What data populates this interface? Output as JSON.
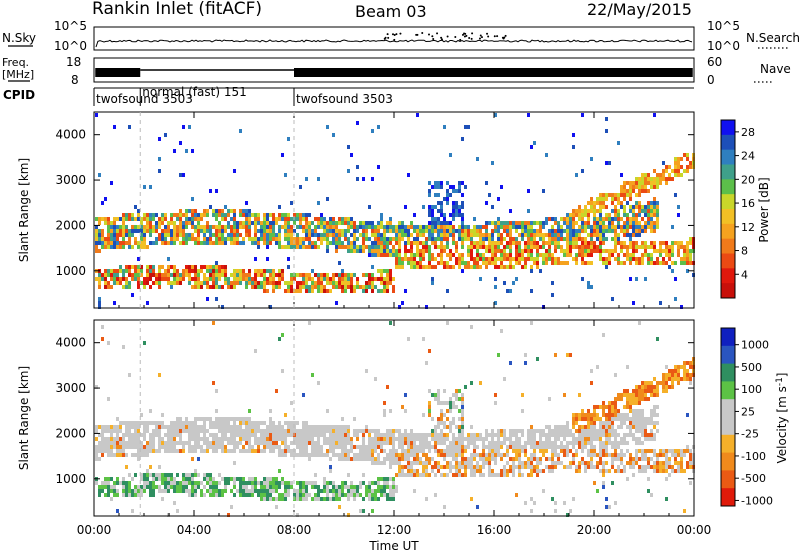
{
  "header": {
    "site": "Rankin Inlet (fitACF)",
    "beam": "Beam 03",
    "date": "22/May/2015"
  },
  "summary": {
    "nsky_label": "N.Sky",
    "nsky_ticks": [
      "10^5",
      "10^0"
    ],
    "nsearch_label": "N.Search",
    "freq_label_1": "Freq.",
    "freq_label_2": "[MHz]",
    "freq_ticks": [
      "18",
      "8"
    ],
    "nave_label": "Nave",
    "nave_ticks": [
      "60",
      "0"
    ],
    "cpid_label": "CPID",
    "modes": [
      {
        "name": "twofsound 3503",
        "start_h": 0.0
      },
      {
        "name": "normal (fast) 151",
        "start_h": 1.85
      },
      {
        "name": "twofsound 3503",
        "start_h": 8.0
      }
    ]
  },
  "legend_colors": {
    "power": [
      "#1010f0",
      "#1d4fb8",
      "#2f7fbf",
      "#3fa08a",
      "#5cbf4a",
      "#c9d62a",
      "#f2c025",
      "#f5a21f",
      "#f07a1a",
      "#eb4a13",
      "#e0180c",
      "#c8100a"
    ],
    "velocity": [
      "#1020c0",
      "#2a55c0",
      "#2f8f60",
      "#5cc245",
      "#c8c8c8",
      "#c8c8c8",
      "#f5b02a",
      "#f08a1c",
      "#ea5a14",
      "#e01a0a"
    ]
  },
  "chart_data": [
    {
      "type": "line",
      "title": "N.Sky / N.Search",
      "x_range_hours": [
        0,
        24
      ],
      "y_ticks": [
        "10^5",
        "10^0"
      ],
      "series": [
        {
          "name": "N.Sky",
          "shape": "noise level near 10^0 with spikes between 12:00 and 16:00"
        }
      ]
    },
    {
      "type": "line",
      "title": "Freq. / Nave",
      "x_range_hours": [
        0,
        24
      ],
      "series": [
        {
          "name": "Freq",
          "pattern": "alternating 8-18 MHz (twofsound) 00:00-01:50 and 08:00-24:00"
        }
      ]
    },
    {
      "type": "heatmap",
      "title": "Power [dB]",
      "ylabel": "Slant Range [km]",
      "xlabel": "Time UT",
      "x_ticks": [
        "00:00",
        "04:00",
        "08:00",
        "12:00",
        "16:00",
        "20:00",
        "00:00"
      ],
      "y_ticks": [
        1000,
        2000,
        3000,
        4000
      ],
      "ylim": [
        180,
        4500
      ],
      "colorbar_label": "Power [dB]",
      "colorbar_ticks": [
        4,
        8,
        12,
        16,
        20,
        24,
        28
      ],
      "colorbar_range": [
        0,
        30
      ]
    },
    {
      "type": "heatmap",
      "title": "Velocity",
      "ylabel": "Slant Range [km]",
      "xlabel": "Time UT",
      "x_ticks": [
        "00:00",
        "04:00",
        "08:00",
        "12:00",
        "16:00",
        "20:00",
        "00:00"
      ],
      "y_ticks": [
        1000,
        2000,
        3000,
        4000
      ],
      "ylim": [
        180,
        4500
      ],
      "colorbar_label": "Velocity [m s^-1]",
      "colorbar_ticks": [
        1000,
        500,
        100,
        25,
        -25,
        -100,
        -500,
        -1000
      ]
    }
  ]
}
